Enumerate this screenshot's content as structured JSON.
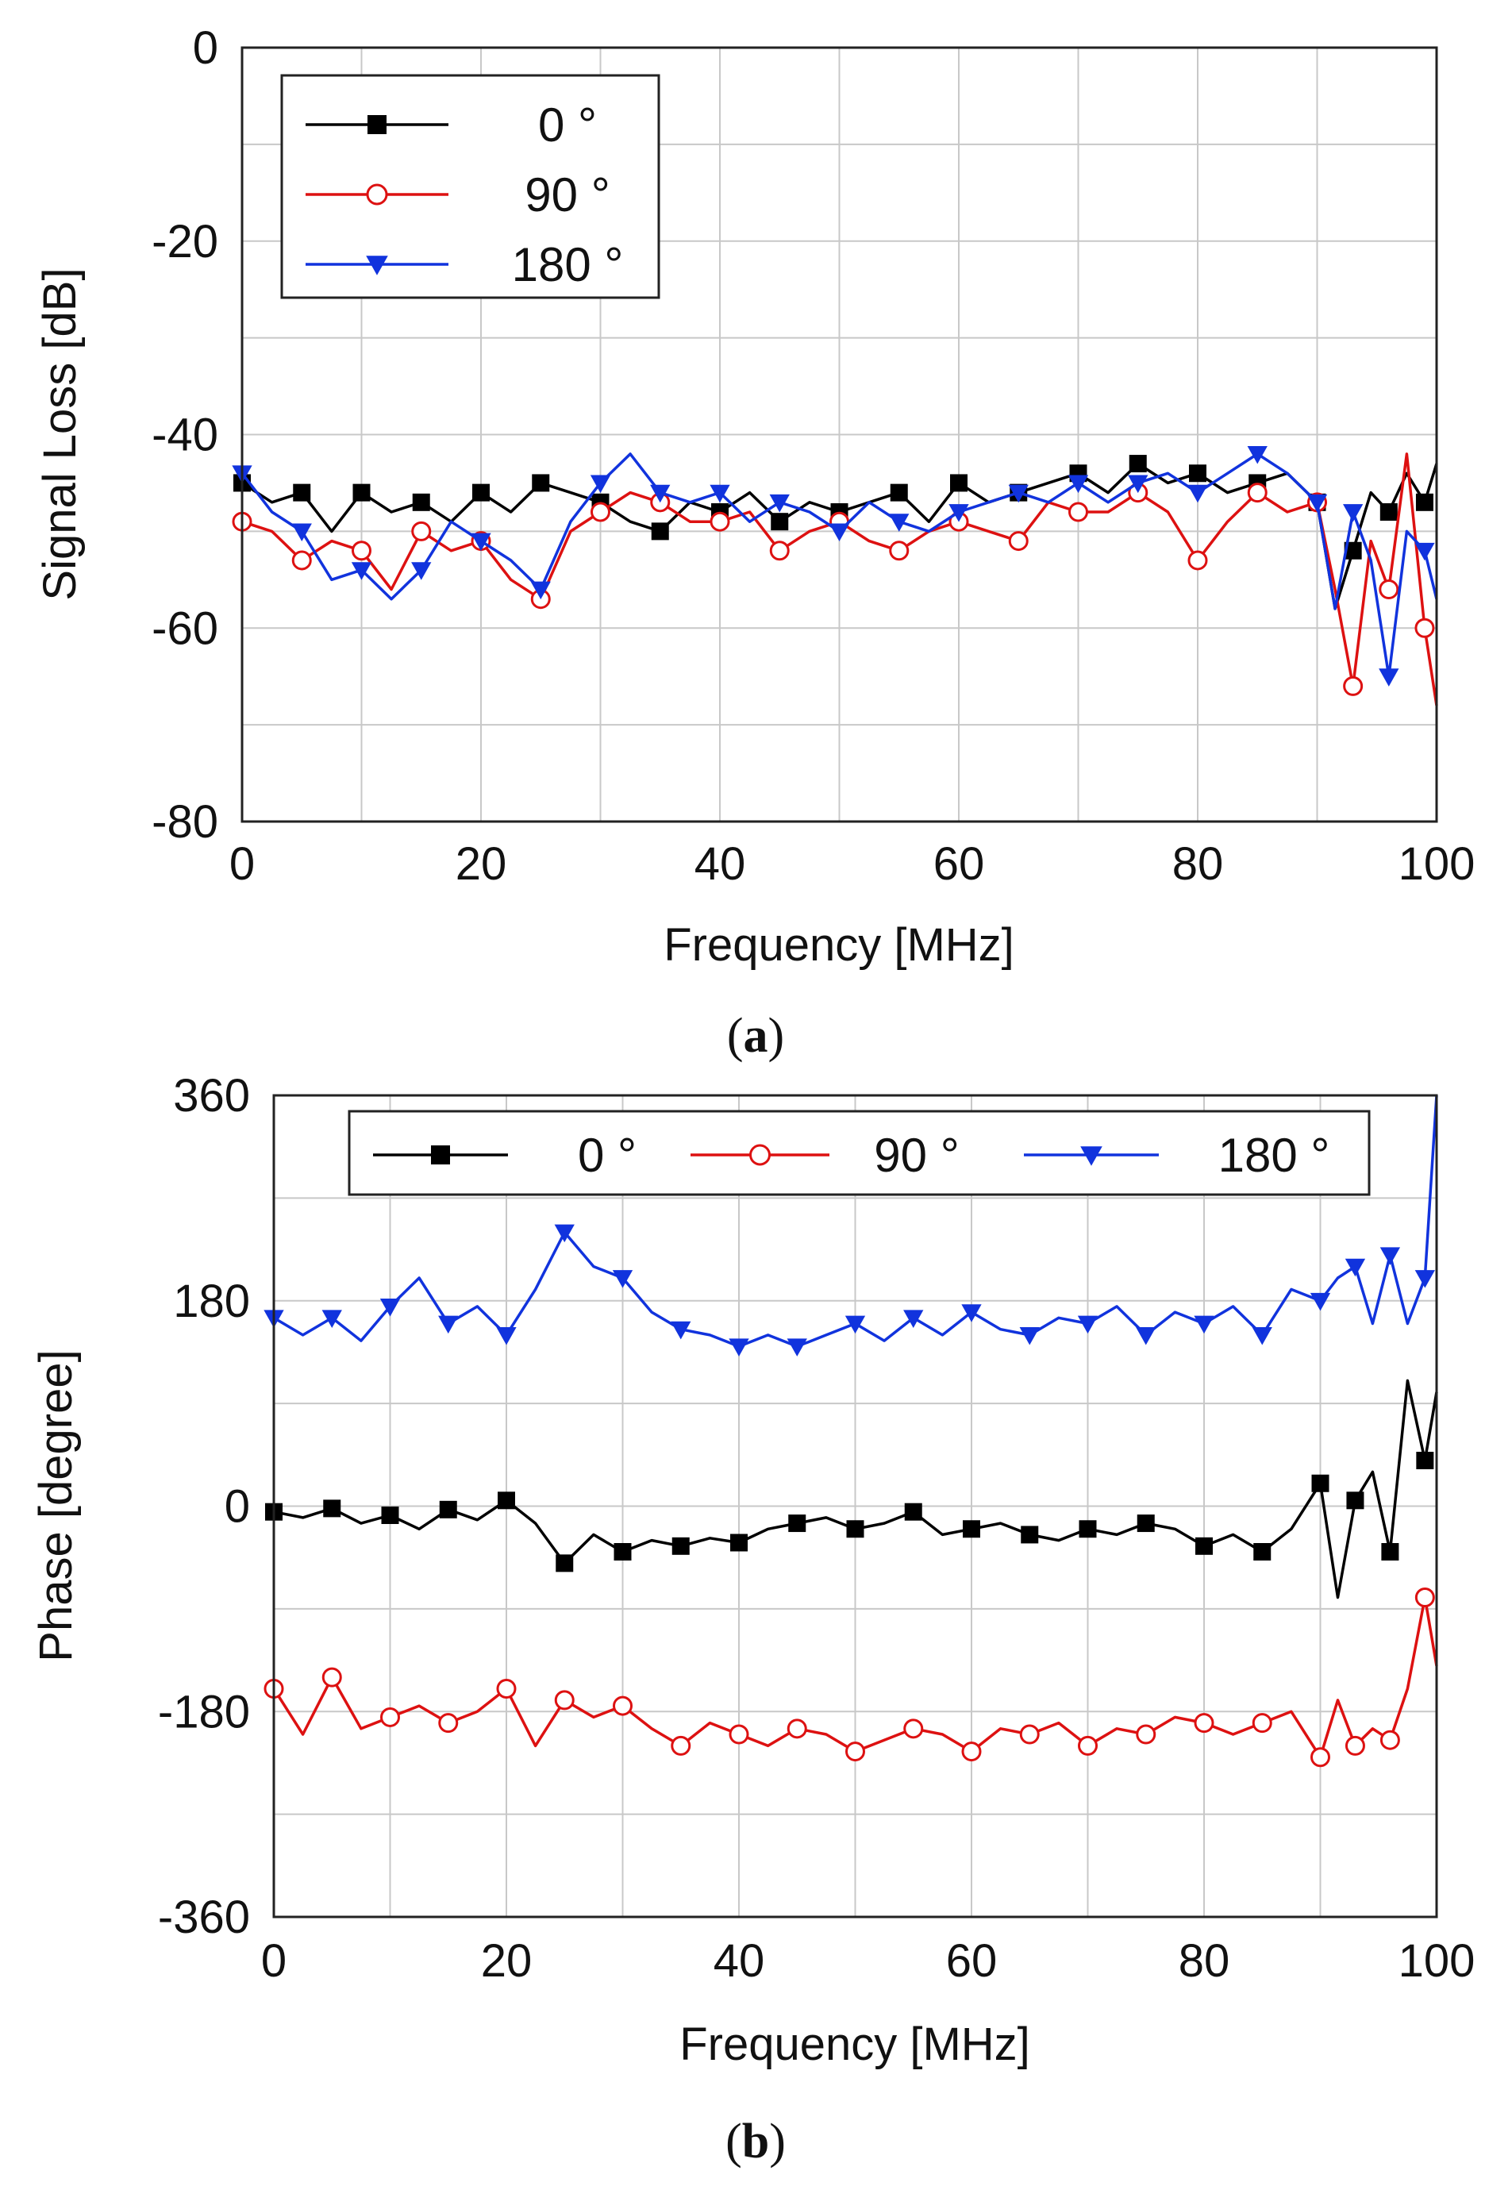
{
  "chart_data": [
    {
      "id": "a",
      "type": "line",
      "title": "",
      "caption": "a",
      "xlabel": "Frequency [MHz]",
      "ylabel": "Signal Loss [dB]",
      "xlim": [
        0,
        100
      ],
      "ylim": [
        -80,
        0
      ],
      "xticks": [
        0,
        20,
        40,
        60,
        80,
        100
      ],
      "yticks": [
        0,
        -20,
        -40,
        -60,
        -80
      ],
      "grid": true,
      "legend_position": "top-left",
      "legend_layout": "vertical",
      "x": [
        0,
        2.5,
        5,
        7.5,
        10,
        12.5,
        15,
        17.5,
        20,
        22.5,
        25,
        27.5,
        30,
        32.5,
        35,
        37.5,
        40,
        42.5,
        45,
        47.5,
        50,
        52.5,
        55,
        57.5,
        60,
        62.5,
        65,
        67.5,
        70,
        72.5,
        75,
        77.5,
        80,
        82.5,
        85,
        87.5,
        90,
        91.5,
        93,
        94.5,
        96,
        97.5,
        99,
        100
      ],
      "series": [
        {
          "name": "0 °",
          "color": "#000000",
          "marker": "square",
          "values": [
            -45,
            -47,
            -46,
            -50,
            -46,
            -48,
            -47,
            -49,
            -46,
            -48,
            -45,
            -46,
            -47,
            -49,
            -50,
            -47,
            -48,
            -46,
            -49,
            -47,
            -48,
            -47,
            -46,
            -49,
            -45,
            -47,
            -46,
            -45,
            -44,
            -46,
            -43,
            -45,
            -44,
            -46,
            -45,
            -44,
            -47,
            -58,
            -52,
            -46,
            -48,
            -44,
            -47,
            -43
          ]
        },
        {
          "name": "90 °",
          "color": "#dd1111",
          "marker": "circle",
          "values": [
            -49,
            -50,
            -53,
            -51,
            -52,
            -56,
            -50,
            -52,
            -51,
            -55,
            -57,
            -50,
            -48,
            -46,
            -47,
            -49,
            -49,
            -48,
            -52,
            -50,
            -49,
            -51,
            -52,
            -50,
            -49,
            -50,
            -51,
            -47,
            -48,
            -48,
            -46,
            -48,
            -53,
            -49,
            -46,
            -48,
            -47,
            -56,
            -66,
            -51,
            -56,
            -42,
            -60,
            -68
          ]
        },
        {
          "name": "180 °",
          "color": "#1133dd",
          "marker": "triangle-down",
          "values": [
            -44,
            -48,
            -50,
            -55,
            -54,
            -57,
            -54,
            -49,
            -51,
            -53,
            -56,
            -49,
            -45,
            -42,
            -46,
            -47,
            -46,
            -49,
            -47,
            -48,
            -50,
            -47,
            -49,
            -50,
            -48,
            -47,
            -46,
            -47,
            -45,
            -47,
            -45,
            -44,
            -46,
            -44,
            -42,
            -44,
            -47,
            -58,
            -48,
            -53,
            -65,
            -50,
            -52,
            -57
          ]
        }
      ]
    },
    {
      "id": "b",
      "type": "line",
      "title": "",
      "caption": "b",
      "xlabel": "Frequency [MHz]",
      "ylabel": "Phase [degree]",
      "xlim": [
        0,
        100
      ],
      "ylim": [
        -360,
        360
      ],
      "xticks": [
        0,
        20,
        40,
        60,
        80,
        100
      ],
      "yticks": [
        360,
        180,
        0,
        -180,
        -360
      ],
      "grid": true,
      "legend_position": "top",
      "legend_layout": "horizontal",
      "x": [
        0,
        2.5,
        5,
        7.5,
        10,
        12.5,
        15,
        17.5,
        20,
        22.5,
        25,
        27.5,
        30,
        32.5,
        35,
        37.5,
        40,
        42.5,
        45,
        47.5,
        50,
        52.5,
        55,
        57.5,
        60,
        62.5,
        65,
        67.5,
        70,
        72.5,
        75,
        77.5,
        80,
        82.5,
        85,
        87.5,
        90,
        91.5,
        93,
        94.5,
        96,
        97.5,
        99,
        100
      ],
      "series": [
        {
          "name": "0 °",
          "color": "#000000",
          "marker": "square",
          "values": [
            -5,
            -10,
            -2,
            -15,
            -8,
            -20,
            -3,
            -12,
            5,
            -15,
            -50,
            -25,
            -40,
            -30,
            -35,
            -28,
            -32,
            -20,
            -15,
            -10,
            -20,
            -15,
            -5,
            -25,
            -20,
            -15,
            -25,
            -30,
            -20,
            -25,
            -15,
            -20,
            -35,
            -25,
            -40,
            -20,
            20,
            -80,
            5,
            30,
            -40,
            110,
            40,
            100
          ]
        },
        {
          "name": "90 °",
          "color": "#dd1111",
          "marker": "circle",
          "values": [
            -160,
            -200,
            -150,
            -195,
            -185,
            -175,
            -190,
            -180,
            -160,
            -210,
            -170,
            -185,
            -175,
            -195,
            -210,
            -190,
            -200,
            -210,
            -195,
            -200,
            -215,
            -205,
            -195,
            -200,
            -215,
            -195,
            -200,
            -190,
            -210,
            -195,
            -200,
            -185,
            -190,
            -200,
            -190,
            -180,
            -220,
            -170,
            -210,
            -195,
            -205,
            -160,
            -80,
            -140
          ]
        },
        {
          "name": "180 °",
          "color": "#1133dd",
          "marker": "triangle-down",
          "values": [
            165,
            150,
            165,
            145,
            175,
            200,
            160,
            175,
            150,
            190,
            240,
            210,
            200,
            170,
            155,
            150,
            140,
            150,
            140,
            150,
            160,
            145,
            165,
            150,
            170,
            155,
            150,
            165,
            160,
            175,
            150,
            170,
            160,
            175,
            150,
            190,
            180,
            200,
            210,
            160,
            220,
            160,
            200,
            360
          ]
        }
      ]
    }
  ]
}
